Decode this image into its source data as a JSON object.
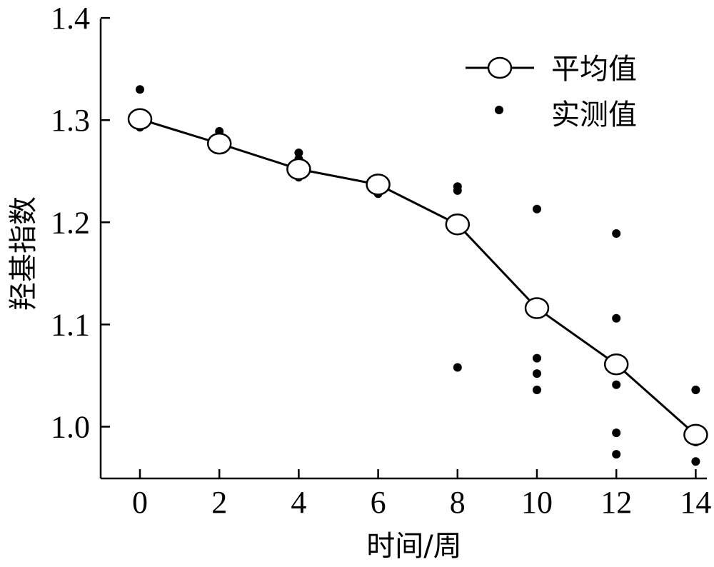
{
  "chart_data": {
    "type": "line",
    "title": "",
    "xlabel": "时间/周",
    "ylabel": "羟基指数",
    "xlim": [
      -1,
      14.3
    ],
    "ylim": [
      0.95,
      1.4
    ],
    "x_ticks": [
      "0",
      "2",
      "4",
      "6",
      "8",
      "10",
      "12",
      "14"
    ],
    "y_ticks": [
      "1.0",
      "1.1",
      "1.2",
      "1.3",
      "1.4"
    ],
    "grid": false,
    "legend_position": "top-right",
    "series": [
      {
        "name": "平均值",
        "style": "line-with-open-circles",
        "x": [
          0,
          2,
          4,
          6,
          8,
          10,
          12,
          14
        ],
        "y": [
          1.301,
          1.277,
          1.252,
          1.237,
          1.198,
          1.116,
          1.061,
          0.992
        ]
      },
      {
        "name": "实测值",
        "style": "filled-dots",
        "points": [
          [
            0,
            1.33
          ],
          [
            0,
            1.296
          ],
          [
            0,
            1.293
          ],
          [
            2,
            1.289
          ],
          [
            2,
            1.283
          ],
          [
            2,
            1.277
          ],
          [
            2,
            1.272
          ],
          [
            4,
            1.268
          ],
          [
            4,
            1.262
          ],
          [
            4,
            1.244
          ],
          [
            6,
            1.243
          ],
          [
            6,
            1.239
          ],
          [
            6,
            1.234
          ],
          [
            6,
            1.228
          ],
          [
            8,
            1.235
          ],
          [
            8,
            1.231
          ],
          [
            8,
            1.058
          ],
          [
            10,
            1.213
          ],
          [
            10,
            1.067
          ],
          [
            10,
            1.052
          ],
          [
            10,
            1.036
          ],
          [
            12,
            1.189
          ],
          [
            12,
            1.106
          ],
          [
            12,
            1.041
          ],
          [
            12,
            0.994
          ],
          [
            12,
            0.973
          ],
          [
            14,
            1.036
          ],
          [
            14,
            0.989
          ],
          [
            14,
            0.985
          ],
          [
            14,
            0.966
          ]
        ]
      }
    ]
  },
  "colors": {
    "ink": "#000000",
    "marker_fill": "#ffffff"
  }
}
